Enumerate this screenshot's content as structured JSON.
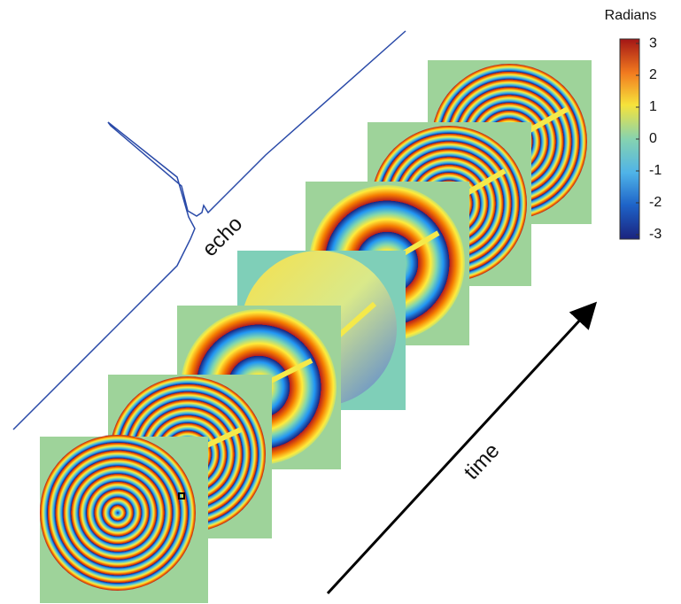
{
  "colorbar": {
    "title": "Radians",
    "lim": [
      -3.14,
      3.14
    ],
    "ticks": [
      3,
      2,
      1,
      0,
      -1,
      -2,
      -3
    ]
  },
  "annotations": {
    "echo": "echo",
    "time": "time"
  }
}
